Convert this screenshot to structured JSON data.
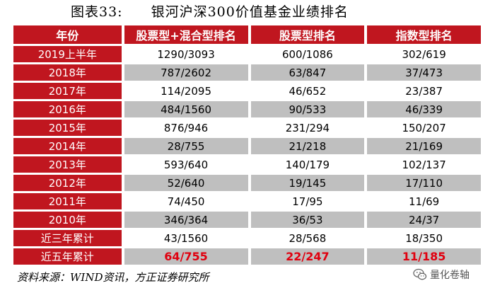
{
  "title": {
    "figure": "图表33:",
    "text": "银河沪深300价值基金业绩排名"
  },
  "table": {
    "headers": [
      "年份",
      "股票型+混合型排名",
      "股票型排名",
      "指数型排名"
    ],
    "rows": [
      {
        "label": "2019上半年",
        "c1": "1290/3093",
        "c2": "600/1086",
        "c3": "302/619"
      },
      {
        "label": "2018年",
        "c1": "787/2602",
        "c2": "63/847",
        "c3": "37/473"
      },
      {
        "label": "2017年",
        "c1": "114/2095",
        "c2": "46/652",
        "c3": "23/387"
      },
      {
        "label": "2016年",
        "c1": "484/1560",
        "c2": "90/533",
        "c3": "46/339"
      },
      {
        "label": "2015年",
        "c1": "876/946",
        "c2": "231/294",
        "c3": "150/207"
      },
      {
        "label": "2014年",
        "c1": "28/755",
        "c2": "21/218",
        "c3": "21/169"
      },
      {
        "label": "2013年",
        "c1": "593/640",
        "c2": "140/179",
        "c3": "102/137"
      },
      {
        "label": "2012年",
        "c1": "52/640",
        "c2": "19/145",
        "c3": "17/110"
      },
      {
        "label": "2011年",
        "c1": "74/450",
        "c2": "17/95",
        "c3": "11/69"
      },
      {
        "label": "2010年",
        "c1": "346/364",
        "c2": "36/53",
        "c3": "24/37"
      },
      {
        "label": "近三年累计",
        "c1": "43/1560",
        "c2": "28/568",
        "c3": "18/350"
      },
      {
        "label": "近五年累计",
        "c1": "64/755",
        "c2": "22/247",
        "c3": "11/185"
      }
    ]
  },
  "source": "资料来源：WIND资讯，方正证券研究所",
  "watermark": {
    "icon": "wechat-icon",
    "text": "量化卷轴"
  },
  "colors": {
    "header_red": "#c0161f",
    "stripe_gray": "#bfbfbf",
    "highlight_red": "#e0000f"
  }
}
